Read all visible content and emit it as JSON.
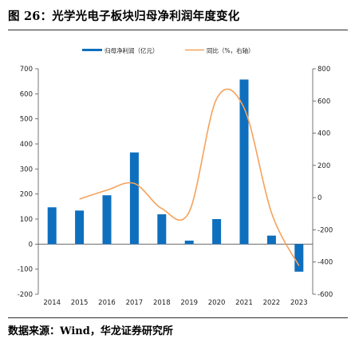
{
  "title": "图 26：光学光电子板块归母净利润年度变化",
  "source": "数据来源：Wind，华龙证券研究所",
  "colors": {
    "bar": "#0e6fbe",
    "line": "#f5a25b",
    "axis": "#555555"
  },
  "chart_data": {
    "type": "bar",
    "categories": [
      "2014",
      "2015",
      "2016",
      "2017",
      "2018",
      "2019",
      "2020",
      "2021",
      "2022",
      "2023"
    ],
    "series": [
      {
        "name": "归母净利润（亿元）",
        "type": "bar",
        "axis": "left",
        "values": [
          147,
          134,
          195,
          366,
          119,
          14,
          100,
          657,
          34,
          -110
        ]
      },
      {
        "name": "同比（%，右轴）",
        "type": "line",
        "axis": "right",
        "values": [
          null,
          -9,
          46,
          88,
          -68,
          -88,
          614,
          556,
          -95,
          -424
        ]
      }
    ],
    "ylim_left": [
      -200,
      700
    ],
    "yticks_left": [
      "-200",
      "-100",
      "0",
      "100",
      "200",
      "300",
      "400",
      "500",
      "600",
      "700"
    ],
    "ylim_right": [
      -600,
      800
    ],
    "yticks_right": [
      "-600",
      "-400",
      "-200",
      "0",
      "200",
      "400",
      "600",
      "800"
    ],
    "legend_position": "top-center",
    "grid": false
  }
}
